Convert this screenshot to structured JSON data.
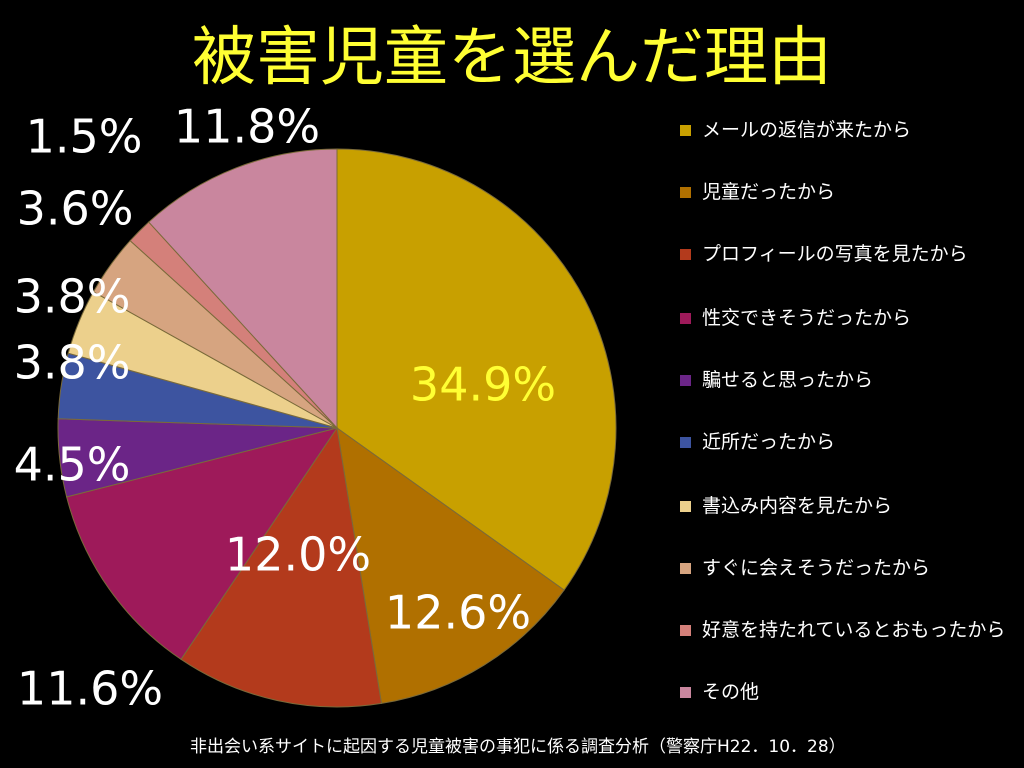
{
  "title": "被害児童を選んだ理由",
  "source": "非出会い系サイトに起因する児童被害の事犯に係る調査分析（警察庁H22．10．28）",
  "chart_data": {
    "type": "pie",
    "title": "被害児童を選んだ理由",
    "start": "top",
    "direction": "clockwise",
    "legend_position": "right",
    "slices": [
      {
        "label": "メールの返信が来たから",
        "value": 34.9,
        "display": "34.9%",
        "color": "#c8a000",
        "label_color": "#ffff33"
      },
      {
        "label": "児童だったから",
        "value": 12.6,
        "display": "12.6%",
        "color": "#b07000",
        "label_color": "#ffffff"
      },
      {
        "label": "プロフィールの写真を見たから",
        "value": 12.0,
        "display": "12.0%",
        "color": "#b33a1c",
        "label_color": "#ffffff"
      },
      {
        "label": "性交できそうだったから",
        "value": 11.6,
        "display": "11.6%",
        "color": "#9e1a5a",
        "label_color": "#ffffff"
      },
      {
        "label": "騙せると思ったから",
        "value": 4.5,
        "display": "4.5%",
        "color": "#6b2587",
        "label_color": "#ffffff"
      },
      {
        "label": "近所だったから",
        "value": 3.8,
        "display": "3.8%",
        "color": "#3d54a0",
        "label_color": "#ffffff"
      },
      {
        "label": "書込み内容を見たから",
        "value": 3.8,
        "display": "3.8%",
        "color": "#ecd08c",
        "label_color": "#ffffff"
      },
      {
        "label": "すぐに会えそうだったから",
        "value": 3.6,
        "display": "3.6%",
        "color": "#d6a480",
        "label_color": "#ffffff"
      },
      {
        "label": "好意を持たれているとおもったから",
        "value": 1.5,
        "display": "1.5%",
        "color": "#d4807a",
        "label_color": "#ffffff"
      },
      {
        "label": "その他",
        "value": 11.8,
        "display": "11.8%",
        "color": "#c9869e",
        "label_color": "#ffffff"
      }
    ]
  }
}
